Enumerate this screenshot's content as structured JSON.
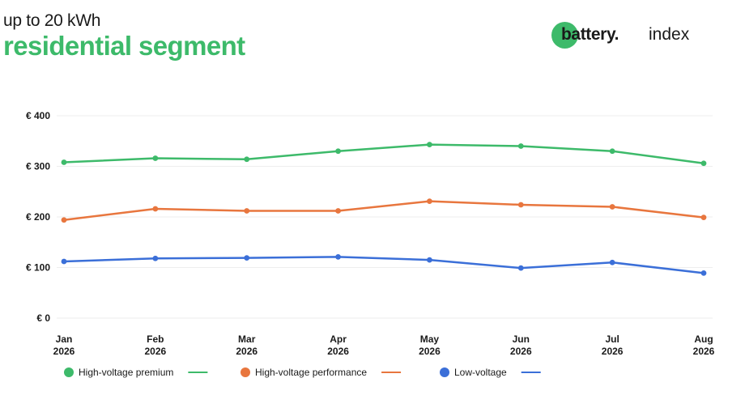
{
  "header": {
    "subtitle": "up to 20 kWh",
    "title": "residential segment"
  },
  "logo": {
    "word": "battery.",
    "index": "index",
    "accent_color": "#3dba6a"
  },
  "chart_data": {
    "type": "line",
    "categories": [
      [
        "Jan",
        "2026"
      ],
      [
        "Feb",
        "2026"
      ],
      [
        "Mar",
        "2026"
      ],
      [
        "Apr",
        "2026"
      ],
      [
        "May",
        "2026"
      ],
      [
        "Jun",
        "2026"
      ],
      [
        "Jul",
        "2026"
      ],
      [
        "Aug",
        "2026"
      ]
    ],
    "y_ticks": [
      "€ 0",
      "€ 100",
      "€ 200",
      "€ 300",
      "€ 400"
    ],
    "ylim": [
      0,
      400
    ],
    "y_tick_values": [
      0,
      100,
      200,
      300,
      400
    ],
    "grid": true,
    "legend_position": "bottom-left",
    "series": [
      {
        "name": "High-voltage premium",
        "color": "#3dba6a",
        "values": [
          308,
          316,
          314,
          330,
          343,
          340,
          330,
          306
        ]
      },
      {
        "name": "High-voltage performance",
        "color": "#e8763e",
        "values": [
          194,
          216,
          212,
          212,
          231,
          224,
          220,
          199
        ]
      },
      {
        "name": "Low-voltage",
        "color": "#3b6fd8",
        "values": [
          112,
          118,
          119,
          121,
          115,
          99,
          110,
          89
        ]
      }
    ]
  }
}
